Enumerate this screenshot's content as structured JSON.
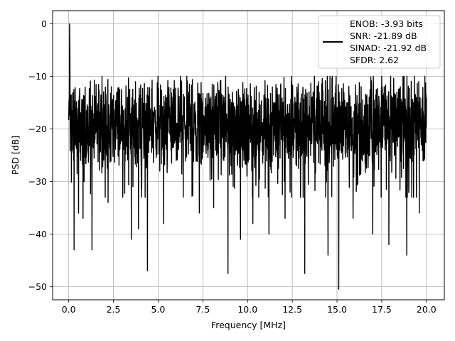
{
  "chart_data": {
    "type": "line",
    "title": "",
    "xlabel": "Frequency [MHz]",
    "ylabel": "PSD [dB]",
    "xlim": [
      -0.9,
      21.0
    ],
    "ylim": [
      -52.5,
      2.5
    ],
    "xticks": [
      0.0,
      2.5,
      5.0,
      7.5,
      10.0,
      12.5,
      15.0,
      17.5,
      20.0
    ],
    "xtick_labels": [
      "0.0",
      "2.5",
      "5.0",
      "7.5",
      "10.0",
      "12.5",
      "15.0",
      "17.5",
      "20.0"
    ],
    "yticks": [
      0,
      -10,
      -20,
      -30,
      -40,
      -50
    ],
    "ytick_labels": [
      "0",
      "−10",
      "−20",
      "−30",
      "−40",
      "−50"
    ],
    "grid": true,
    "legend_position": "top-right",
    "series": [
      {
        "name": "",
        "color": "#000000",
        "x_start": 0.0,
        "x_end": 20.0,
        "noise_floor_db": -19,
        "peak": {
          "x": 0.05,
          "y": 0
        },
        "deep_dips": [
          {
            "x": 0.3,
            "y": -43
          },
          {
            "x": 0.55,
            "y": -36
          },
          {
            "x": 0.8,
            "y": -37
          },
          {
            "x": 1.3,
            "y": -43
          },
          {
            "x": 2.2,
            "y": -34
          },
          {
            "x": 3.5,
            "y": -41
          },
          {
            "x": 3.9,
            "y": -39
          },
          {
            "x": 4.4,
            "y": -47
          },
          {
            "x": 5.3,
            "y": -38
          },
          {
            "x": 6.4,
            "y": -33
          },
          {
            "x": 7.3,
            "y": -36
          },
          {
            "x": 8.1,
            "y": -35
          },
          {
            "x": 8.9,
            "y": -47.5
          },
          {
            "x": 9.6,
            "y": -41
          },
          {
            "x": 10.3,
            "y": -38
          },
          {
            "x": 11.2,
            "y": -40
          },
          {
            "x": 12.1,
            "y": -37
          },
          {
            "x": 13.2,
            "y": -47.5
          },
          {
            "x": 14.5,
            "y": -44
          },
          {
            "x": 15.1,
            "y": -50.5
          },
          {
            "x": 15.9,
            "y": -37
          },
          {
            "x": 17.0,
            "y": -40
          },
          {
            "x": 17.9,
            "y": -42
          },
          {
            "x": 18.9,
            "y": -44
          },
          {
            "x": 19.6,
            "y": -36
          }
        ]
      }
    ],
    "legend_lines": [
      "ENOB: -3.93 bits",
      "SNR: -21.89 dB",
      "SINAD: -21.92 dB",
      "SFDR: 2.62"
    ]
  }
}
